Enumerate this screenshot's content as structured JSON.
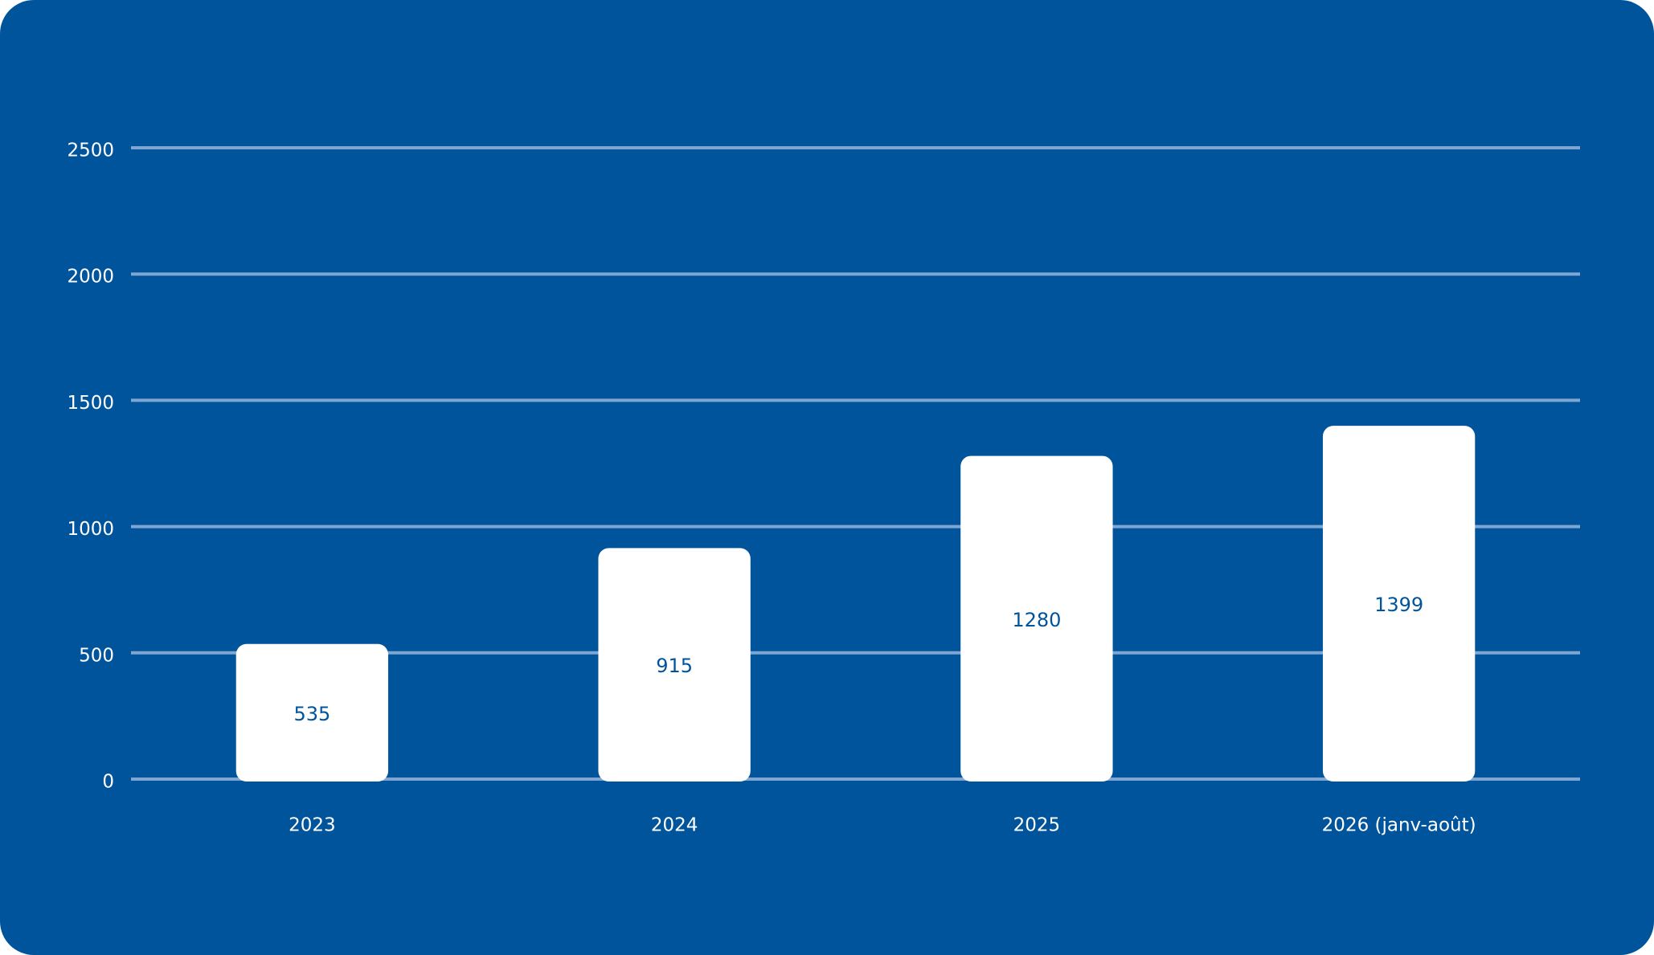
{
  "chart_data": {
    "type": "bar",
    "categories": [
      "2023",
      "2024",
      "2025",
      "2026 (janv-août)"
    ],
    "values": [
      535,
      915,
      1280,
      1399
    ],
    "color": "#ffffff",
    "ylim": [
      0,
      2500
    ],
    "yticks": [
      0,
      500,
      1000,
      1500,
      2000,
      2500
    ],
    "grid": true
  }
}
